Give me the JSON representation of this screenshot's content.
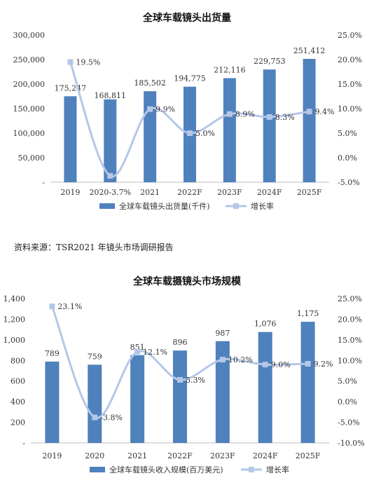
{
  "source_note": "资料来源：TSR2021 年镜头市场调研报告",
  "chart_data": [
    {
      "type": "bar",
      "title": "全球车载镜头出货量",
      "categories": [
        "2019",
        "2020",
        "2021",
        "2022F",
        "2023F",
        "2024F",
        "2025F"
      ],
      "x_tick_labels": [
        "2019",
        "2020-3.7%",
        "2021",
        "2022F",
        "2023F",
        "2024F",
        "2025F"
      ],
      "series": [
        {
          "name": "全球车载镜头出货量(千件)",
          "kind": "bar",
          "axis": "left",
          "values": [
            175247,
            168811,
            185502,
            194775,
            212116,
            229753,
            251412
          ],
          "labels": [
            "175,247",
            "168,811",
            "185,502",
            "194,775",
            "212,116",
            "229,753",
            "251,412"
          ],
          "color": "#4f81bd"
        },
        {
          "name": "增长率",
          "kind": "line",
          "axis": "right",
          "values": [
            19.5,
            -3.7,
            9.9,
            5.0,
            8.9,
            8.3,
            9.4
          ],
          "labels": [
            "19.5%",
            "",
            "9.9%",
            "5.0%",
            "8.9%",
            "8.3%",
            "9.4%"
          ],
          "color": "#b4c7e7"
        }
      ],
      "ylim": [
        0,
        300000
      ],
      "y_ticks": [
        0,
        50000,
        100000,
        150000,
        200000,
        250000,
        300000
      ],
      "y_tick_labels": [
        "-",
        "50,000",
        "100,000",
        "150,000",
        "200,000",
        "250,000",
        "300,000"
      ],
      "y2lim": [
        -5,
        25
      ],
      "y2_ticks": [
        -5,
        0,
        5,
        10,
        15,
        20,
        25
      ],
      "y2_tick_labels": [
        "-5.0%",
        "0.0%",
        "5.0%",
        "10.0%",
        "15.0%",
        "20.0%",
        "25.0%"
      ],
      "legend": "bottom"
    },
    {
      "type": "bar",
      "title": "全球车载摄镜头市场规模",
      "categories": [
        "2019",
        "2020",
        "2021",
        "2022F",
        "2023F",
        "2024F",
        "2025F"
      ],
      "x_tick_labels": [
        "2019",
        "2020",
        "2021",
        "2022F",
        "2023F",
        "2024F",
        "2025F"
      ],
      "series": [
        {
          "name": "全球车载镜头收入规模(百万美元)",
          "kind": "bar",
          "axis": "left",
          "values": [
            789,
            759,
            851,
            896,
            987,
            1076,
            1175
          ],
          "labels": [
            "789",
            "759",
            "851",
            "896",
            "987",
            "1,076",
            "1,175"
          ],
          "color": "#4f81bd"
        },
        {
          "name": "增长率",
          "kind": "line",
          "axis": "right",
          "values": [
            23.1,
            -3.8,
            12.1,
            5.3,
            10.2,
            9.0,
            9.2
          ],
          "labels": [
            "23.1%",
            "-3.8%",
            "12.1%",
            "5.3%",
            "10.2%",
            "9.0%",
            "9.2%"
          ],
          "color": "#b4c7e7"
        }
      ],
      "ylim": [
        0,
        1400
      ],
      "y_ticks": [
        0,
        200,
        400,
        600,
        800,
        1000,
        1200,
        1400
      ],
      "y_tick_labels": [
        "-",
        "200",
        "400",
        "600",
        "800",
        "1,000",
        "1,200",
        "1,400"
      ],
      "y2lim": [
        -10,
        25
      ],
      "y2_ticks": [
        -10,
        -5,
        0,
        5,
        10,
        15,
        20,
        25
      ],
      "y2_tick_labels": [
        "-10.0%",
        "-5.0%",
        "0.0%",
        "5.0%",
        "10.0%",
        "15.0%",
        "20.0%",
        "25.0%"
      ],
      "legend": "bottom"
    }
  ]
}
